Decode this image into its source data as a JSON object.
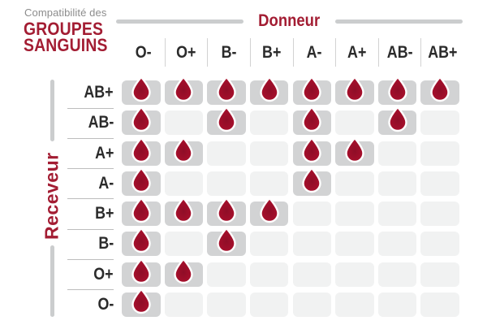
{
  "title": {
    "eyebrow": "Compatibilité des",
    "line1": "GROUPES",
    "line2": "SANGUINS"
  },
  "donor_axis": {
    "label": "Donneur"
  },
  "receiver_axis": {
    "label": "Receveur"
  },
  "donors": [
    "O-",
    "O+",
    "B-",
    "B+",
    "A-",
    "A+",
    "AB-",
    "AB+"
  ],
  "receivers": [
    "AB+",
    "AB-",
    "A+",
    "A-",
    "B+",
    "B-",
    "O+",
    "O-"
  ],
  "compatibility_matrix": [
    [
      1,
      1,
      1,
      1,
      1,
      1,
      1,
      1
    ],
    [
      1,
      0,
      1,
      0,
      1,
      0,
      1,
      0
    ],
    [
      1,
      1,
      0,
      0,
      1,
      1,
      0,
      0
    ],
    [
      1,
      0,
      0,
      0,
      1,
      0,
      0,
      0
    ],
    [
      1,
      1,
      1,
      1,
      0,
      0,
      0,
      0
    ],
    [
      1,
      0,
      1,
      0,
      0,
      0,
      0,
      0
    ],
    [
      1,
      1,
      0,
      0,
      0,
      0,
      0,
      0
    ],
    [
      1,
      0,
      0,
      0,
      0,
      0,
      0,
      0
    ]
  ],
  "icons": {
    "compatible": "blood-drop-icon"
  },
  "colors": {
    "accent_red": "#A31D33",
    "drop_red": "#A8102E",
    "drop_red_dark": "#8F0D27",
    "drop_red_bright": "#B5132F",
    "cell_filled": "#D2D3D4",
    "cell_empty": "#F1F2F2",
    "axis_line_gray": "#CBCDCE",
    "divider_gray": "#BDBDBD",
    "text_dark": "#2B2B2B",
    "eyebrow_gray": "#8C8C8C"
  },
  "chart_data": {
    "type": "heatmap",
    "title": "Compatibilité des groupes sanguins",
    "x_label": "Donneur",
    "y_label": "Receveur",
    "x_categories": [
      "O-",
      "O+",
      "B-",
      "B+",
      "A-",
      "A+",
      "AB-",
      "AB+"
    ],
    "y_categories": [
      "AB+",
      "AB-",
      "A+",
      "A-",
      "B+",
      "B-",
      "O+",
      "O-"
    ],
    "values": [
      [
        1,
        1,
        1,
        1,
        1,
        1,
        1,
        1
      ],
      [
        1,
        0,
        1,
        0,
        1,
        0,
        1,
        0
      ],
      [
        1,
        1,
        0,
        0,
        1,
        1,
        0,
        0
      ],
      [
        1,
        0,
        0,
        0,
        1,
        0,
        0,
        0
      ],
      [
        1,
        1,
        1,
        1,
        0,
        0,
        0,
        0
      ],
      [
        1,
        0,
        1,
        0,
        0,
        0,
        0,
        0
      ],
      [
        1,
        1,
        0,
        0,
        0,
        0,
        0,
        0
      ],
      [
        1,
        0,
        0,
        0,
        0,
        0,
        0,
        0
      ]
    ],
    "value_meaning": "1 = blood drop shown (donor compatible with receiver), 0 = empty cell"
  }
}
